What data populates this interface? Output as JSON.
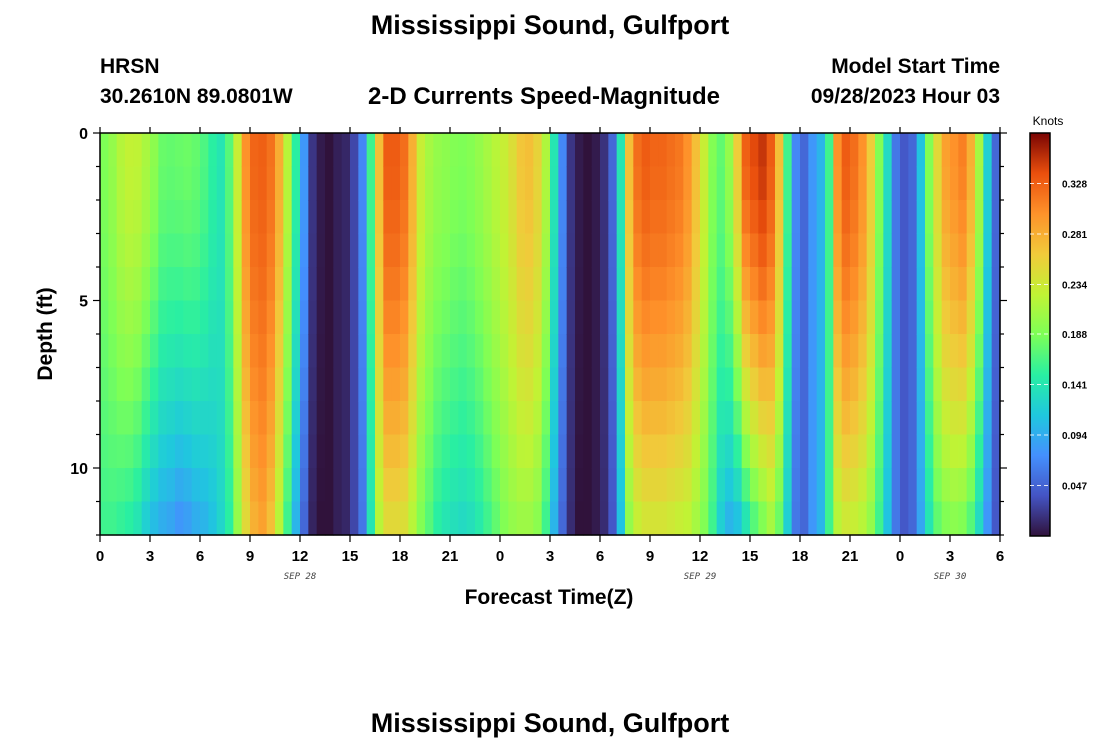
{
  "title": "Mississippi Sound, Gulfport",
  "repeated_title": "Mississippi Sound, Gulfport",
  "station": {
    "id": "HRSN",
    "coordinates": "30.2610N  89.0801W"
  },
  "model_start": {
    "label": "Model Start Time",
    "value": "09/28/2023 Hour 03"
  },
  "chart_data": {
    "type": "heatmap",
    "title": "2-D Currents Speed-Magnitude",
    "xlabel": "Forecast Time(Z)",
    "ylabel": "Depth (ft)",
    "colorbar_label": "Knots",
    "x_unit": "forecast hours from 00Z Sep 28",
    "xlim": [
      0,
      54
    ],
    "ylim": [
      0,
      12
    ],
    "x_tick_labels": [
      {
        "x": 0,
        "label": "0"
      },
      {
        "x": 3,
        "label": "3"
      },
      {
        "x": 6,
        "label": "6"
      },
      {
        "x": 9,
        "label": "9"
      },
      {
        "x": 12,
        "label": "12"
      },
      {
        "x": 15,
        "label": "15"
      },
      {
        "x": 18,
        "label": "18"
      },
      {
        "x": 21,
        "label": "21"
      },
      {
        "x": 24,
        "label": "0"
      },
      {
        "x": 27,
        "label": "3"
      },
      {
        "x": 30,
        "label": "6"
      },
      {
        "x": 33,
        "label": "9"
      },
      {
        "x": 36,
        "label": "12"
      },
      {
        "x": 39,
        "label": "15"
      },
      {
        "x": 42,
        "label": "18"
      },
      {
        "x": 45,
        "label": "21"
      },
      {
        "x": 48,
        "label": "0"
      },
      {
        "x": 51,
        "label": "3"
      },
      {
        "x": 54,
        "label": "6"
      }
    ],
    "date_labels": [
      {
        "x": 12,
        "label": "SEP 28"
      },
      {
        "x": 36,
        "label": "SEP 29"
      },
      {
        "x": 51,
        "label": "SEP 30"
      }
    ],
    "y_tick_labels": [
      {
        "y": 0,
        "label": "0"
      },
      {
        "y": 5,
        "label": "5"
      },
      {
        "y": 10,
        "label": "10"
      }
    ],
    "colorbar_range": [
      0,
      0.375
    ],
    "colorbar_ticks": [
      0.047,
      0.094,
      0.141,
      0.188,
      0.234,
      0.281,
      0.328
    ],
    "colorbar_tick_labels": [
      "0.047",
      "0.094",
      "0.141",
      "0.188",
      "0.234",
      "0.281",
      "0.328"
    ],
    "time_step_hours": 0.5,
    "depth_step_ft": 1,
    "series": [
      {
        "profile": "surface",
        "knots": [
          0.188,
          0.2,
          0.218,
          0.226,
          0.224,
          0.212,
          0.196,
          0.178,
          0.176,
          0.178,
          0.18,
          0.176,
          0.166,
          0.15,
          0.14,
          0.17,
          0.23,
          0.3,
          0.325,
          0.328,
          0.318,
          0.282,
          0.22,
          0.15,
          0.08,
          0.02,
          0.005,
          0.0,
          0.008,
          0.012,
          0.03,
          0.07,
          0.16,
          0.27,
          0.33,
          0.33,
          0.32,
          0.28,
          0.23,
          0.21,
          0.2,
          0.196,
          0.19,
          0.188,
          0.192,
          0.2,
          0.21,
          0.22,
          0.23,
          0.245,
          0.265,
          0.27,
          0.255,
          0.215,
          0.14,
          0.07,
          0.02,
          0.005,
          0.0,
          0.005,
          0.018,
          0.05,
          0.14,
          0.27,
          0.32,
          0.33,
          0.325,
          0.325,
          0.32,
          0.315,
          0.3,
          0.27,
          0.23,
          0.19,
          0.175,
          0.2,
          0.26,
          0.328,
          0.34,
          0.35,
          0.33,
          0.27,
          0.16,
          0.07,
          0.05,
          0.08,
          0.1,
          0.16,
          0.3,
          0.33,
          0.32,
          0.3,
          0.26,
          0.19,
          0.13,
          0.06,
          0.04,
          0.05,
          0.11,
          0.19,
          0.25,
          0.29,
          0.3,
          0.31,
          0.28,
          0.21,
          0.12,
          0.05
        ]
      },
      {
        "profile": "near-bottom",
        "knots": [
          0.16,
          0.16,
          0.155,
          0.15,
          0.14,
          0.12,
          0.105,
          0.095,
          0.09,
          0.08,
          0.085,
          0.095,
          0.1,
          0.11,
          0.125,
          0.15,
          0.2,
          0.25,
          0.28,
          0.29,
          0.27,
          0.22,
          0.16,
          0.1,
          0.05,
          0.01,
          0.0,
          0.0,
          0.008,
          0.012,
          0.03,
          0.06,
          0.14,
          0.22,
          0.25,
          0.25,
          0.245,
          0.22,
          0.19,
          0.17,
          0.15,
          0.14,
          0.135,
          0.13,
          0.135,
          0.145,
          0.16,
          0.175,
          0.19,
          0.2,
          0.205,
          0.205,
          0.195,
          0.16,
          0.1,
          0.05,
          0.015,
          0.0,
          0.0,
          0.005,
          0.015,
          0.04,
          0.11,
          0.2,
          0.23,
          0.24,
          0.24,
          0.24,
          0.235,
          0.23,
          0.225,
          0.21,
          0.19,
          0.16,
          0.12,
          0.1,
          0.11,
          0.14,
          0.17,
          0.19,
          0.21,
          0.18,
          0.12,
          0.06,
          0.05,
          0.08,
          0.1,
          0.16,
          0.22,
          0.235,
          0.23,
          0.22,
          0.2,
          0.16,
          0.11,
          0.06,
          0.04,
          0.05,
          0.09,
          0.14,
          0.175,
          0.19,
          0.195,
          0.19,
          0.17,
          0.13,
          0.08,
          0.04
        ]
      }
    ]
  }
}
